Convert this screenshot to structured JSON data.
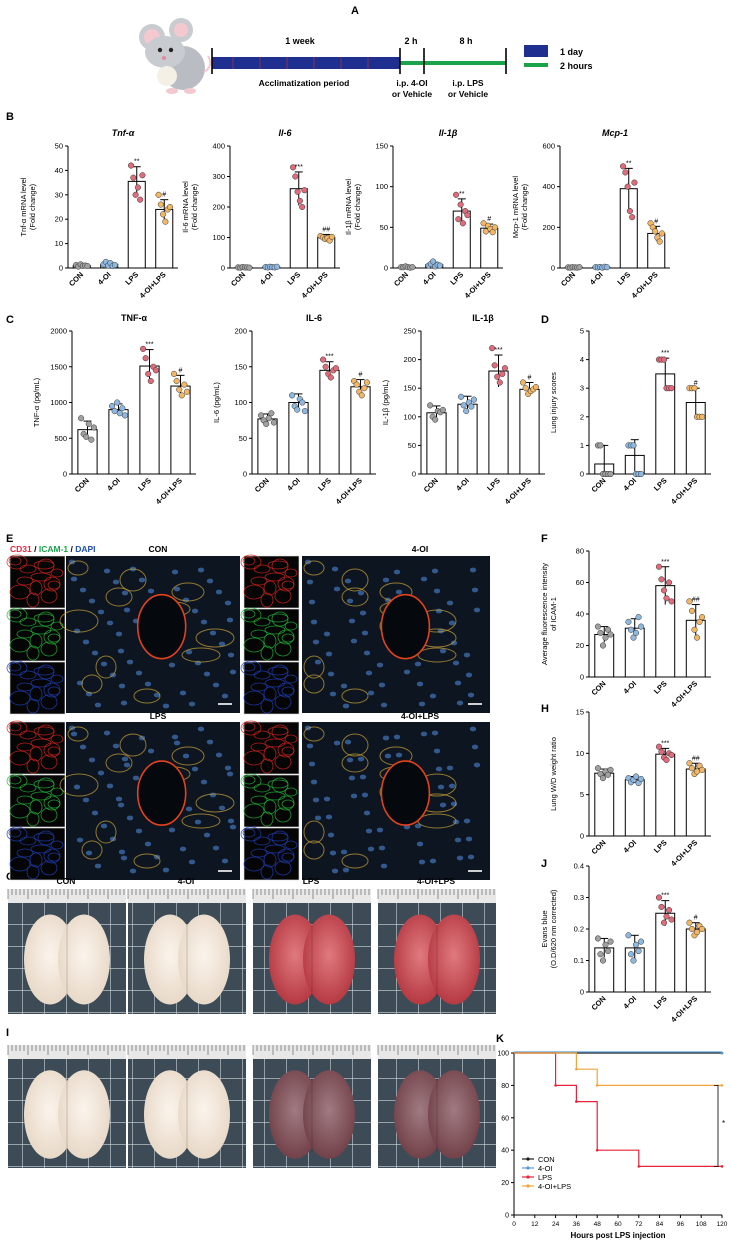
{
  "panel_letters": [
    "A",
    "B",
    "C",
    "D",
    "E",
    "F",
    "G",
    "H",
    "I",
    "J",
    "K"
  ],
  "timeline": {
    "period_1": "1 week",
    "period_2": "2 h",
    "period_3": "8 h",
    "acclim": "Acclimatization period",
    "ip1_line1": "i.p. 4-OI",
    "ip1_line2": "or Vehicle",
    "ip2_line1": "i.p. LPS",
    "ip2_line2": "or Vehicle",
    "legend_day": "1 day",
    "legend_hours": "2 hours",
    "colors": {
      "day": "#1f2f8f",
      "hours": "#1aa34a"
    }
  },
  "group_colors": {
    "CON": "#a0a0a0",
    "4-OI": "#8fb8e0",
    "LPS": "#e06b7a",
    "4-OI+LPS": "#f2b766"
  },
  "panel_e": {
    "channel_cd31": "CD31",
    "sep1": " / ",
    "channel_icam": "ICAM-1",
    "sep2": " / ",
    "channel_dapi": "DAPI",
    "labels": [
      "CON",
      "4-OI",
      "LPS",
      "4-OI+LPS"
    ]
  },
  "panel_g": {
    "labels": [
      "CON",
      "4-OI",
      "LPS",
      "4-OI+LPS"
    ]
  },
  "chart_data": [
    {
      "id": "B1",
      "type": "bar",
      "title": "Tnf-α",
      "ylabel": [
        "Tnf-α mRNA level",
        "(Fold change)"
      ],
      "categories": [
        "CON",
        "4-OI",
        "LPS",
        "4-OI+LPS"
      ],
      "values": [
        1,
        1.5,
        35.5,
        24
      ],
      "errors": [
        0.5,
        0.8,
        6,
        4
      ],
      "ylim": [
        0,
        50
      ],
      "yticks": [
        0,
        10,
        20,
        30,
        40,
        50
      ],
      "sig": [
        "",
        "",
        "**",
        "#"
      ],
      "points": [
        [
          1.2,
          0.6,
          1.5,
          0.9,
          1.0,
          0.8
        ],
        [
          1.5,
          2.5,
          1.0,
          2.0,
          0.8,
          1.2
        ],
        [
          42,
          37,
          30,
          33,
          28,
          38
        ],
        [
          30,
          26,
          22,
          19,
          24,
          25
        ]
      ]
    },
    {
      "id": "B2",
      "type": "bar",
      "title": "Il-6",
      "ylabel": [
        "Il-6 mRNA level",
        "(Fold change)"
      ],
      "categories": [
        "CON",
        "4-OI",
        "LPS",
        "4-OI+LPS"
      ],
      "values": [
        2,
        3,
        260,
        100
      ],
      "errors": [
        1,
        1.5,
        55,
        10
      ],
      "ylim": [
        0,
        400
      ],
      "yticks": [
        0,
        100,
        200,
        300,
        400
      ],
      "sig": [
        "",
        "",
        "***",
        "##"
      ],
      "points": [
        [
          2,
          1,
          3,
          2,
          2,
          1
        ],
        [
          3,
          2,
          4,
          3,
          2,
          4
        ],
        [
          330,
          300,
          250,
          220,
          200,
          255
        ],
        [
          105,
          100,
          95,
          98,
          90,
          102
        ]
      ]
    },
    {
      "id": "B3",
      "type": "bar",
      "title": "Il-1β",
      "ylabel": [
        "Il-1β mRNA level",
        "(Fold change)"
      ],
      "categories": [
        "CON",
        "4-OI",
        "LPS",
        "4-OI+LPS"
      ],
      "values": [
        1,
        4,
        70,
        49
      ],
      "errors": [
        1,
        3,
        15,
        5
      ],
      "ylim": [
        0,
        150
      ],
      "yticks": [
        0,
        50,
        100,
        150
      ],
      "sig": [
        "",
        "",
        "**",
        "#"
      ],
      "points": [
        [
          1,
          1,
          2,
          1,
          0.5,
          1
        ],
        [
          3,
          5,
          8,
          2,
          4,
          3
        ],
        [
          90,
          60,
          78,
          55,
          70,
          65
        ],
        [
          55,
          45,
          52,
          48,
          44,
          50
        ]
      ]
    },
    {
      "id": "B4",
      "type": "bar",
      "title": "Mcp-1",
      "ylabel": [
        "Mcp-1 mRNA level",
        "(Fold change)"
      ],
      "categories": [
        "CON",
        "4-OI",
        "LPS",
        "4-OI+LPS"
      ],
      "values": [
        3,
        4,
        390,
        170
      ],
      "errors": [
        1,
        2,
        100,
        35
      ],
      "ylim": [
        0,
        600
      ],
      "yticks": [
        0,
        200,
        400,
        600
      ],
      "sig": [
        "",
        "",
        "**",
        "#"
      ],
      "points": [
        [
          3,
          2,
          4,
          3,
          2,
          4
        ],
        [
          4,
          3,
          5,
          2,
          6,
          4
        ],
        [
          500,
          470,
          400,
          280,
          250,
          420
        ],
        [
          220,
          200,
          180,
          150,
          130,
          170
        ]
      ]
    },
    {
      "id": "C1",
      "type": "bar",
      "title": "TNF-α",
      "ylabel": [
        "TNF-α (pg/mL)"
      ],
      "categories": [
        "CON",
        "4-OI",
        "LPS",
        "4-OI+LPS"
      ],
      "values": [
        620,
        900,
        1510,
        1230
      ],
      "errors": [
        120,
        80,
        230,
        150
      ],
      "ylim": [
        0,
        2000
      ],
      "yticks": [
        0,
        500,
        1000,
        1500,
        2000
      ],
      "sig": [
        "",
        "",
        "***",
        "#"
      ],
      "points": [
        [
          780,
          560,
          520,
          700,
          480,
          650
        ],
        [
          950,
          880,
          1000,
          850,
          920,
          820
        ],
        [
          1750,
          1620,
          1400,
          1300,
          1500,
          1450
        ],
        [
          1400,
          1300,
          1180,
          1100,
          1250,
          1150
        ]
      ]
    },
    {
      "id": "C2",
      "type": "bar",
      "title": "IL-6",
      "ylabel": [
        "IL-6 (pg/mL)"
      ],
      "categories": [
        "CON",
        "4-OI",
        "LPS",
        "4-OI+LPS"
      ],
      "values": [
        77,
        100,
        145,
        122
      ],
      "errors": [
        7,
        12,
        12,
        10
      ],
      "ylim": [
        0,
        200
      ],
      "yticks": [
        0,
        50,
        100,
        150,
        200
      ],
      "sig": [
        "",
        "",
        "***",
        "#"
      ],
      "points": [
        [
          82,
          75,
          70,
          78,
          85,
          72
        ],
        [
          110,
          95,
          90,
          105,
          100,
          88
        ],
        [
          160,
          150,
          140,
          135,
          145,
          148
        ],
        [
          130,
          125,
          115,
          110,
          120,
          128
        ]
      ]
    },
    {
      "id": "C3",
      "type": "bar",
      "title": "IL-1β",
      "ylabel": [
        "IL-1β (pg/mL)"
      ],
      "categories": [
        "CON",
        "4-OI",
        "LPS",
        "4-OI+LPS"
      ],
      "values": [
        107,
        122,
        180,
        148
      ],
      "errors": [
        12,
        14,
        28,
        12
      ],
      "ylim": [
        0,
        250
      ],
      "yticks": [
        0,
        50,
        100,
        150,
        200,
        250
      ],
      "sig": [
        "",
        "",
        "***",
        "#"
      ],
      "points": [
        [
          120,
          100,
          95,
          110,
          108,
          112
        ],
        [
          135,
          120,
          110,
          125,
          118,
          130
        ],
        [
          220,
          190,
          170,
          160,
          175,
          185
        ],
        [
          160,
          150,
          140,
          145,
          148,
          152
        ]
      ]
    },
    {
      "id": "D",
      "type": "bar",
      "title": "",
      "ylabel": [
        "Lung injury scores"
      ],
      "categories": [
        "CON",
        "4-OI",
        "LPS",
        "4-OI+LPS"
      ],
      "values": [
        0.35,
        0.65,
        3.5,
        2.5
      ],
      "errors": [
        0.65,
        0.55,
        0.55,
        0.5
      ],
      "ylim": [
        0,
        5
      ],
      "yticks": [
        0,
        1,
        2,
        3,
        4,
        5
      ],
      "sig": [
        "",
        "",
        "***",
        "#"
      ],
      "points": [
        [
          1,
          1,
          0,
          0,
          0,
          0
        ],
        [
          1,
          1,
          1,
          0,
          0,
          0
        ],
        [
          4,
          4,
          4,
          3,
          3,
          3
        ],
        [
          3,
          3,
          3,
          2,
          2,
          2
        ]
      ]
    },
    {
      "id": "F",
      "type": "bar",
      "title": "",
      "ylabel": [
        "Average fluorescence intensity",
        "of ICAM-1"
      ],
      "categories": [
        "CON",
        "4-OI",
        "LPS",
        "4-OI+LPS"
      ],
      "values": [
        27,
        31,
        58,
        36
      ],
      "errors": [
        5,
        6,
        12,
        10
      ],
      "ylim": [
        0,
        80
      ],
      "yticks": [
        0,
        20,
        40,
        60,
        80
      ],
      "sig": [
        "",
        "",
        "***",
        "##"
      ],
      "points": [
        [
          32,
          28,
          20,
          25,
          30,
          27
        ],
        [
          35,
          30,
          25,
          28,
          38,
          32
        ],
        [
          70,
          62,
          55,
          50,
          60,
          48
        ],
        [
          48,
          42,
          30,
          25,
          35,
          38
        ]
      ]
    },
    {
      "id": "H",
      "type": "bar",
      "title": "",
      "ylabel": [
        "Lung W/D weight ratio"
      ],
      "categories": [
        "CON",
        "4-OI",
        "LPS",
        "4-OI+LPS"
      ],
      "values": [
        7.6,
        6.8,
        9.9,
        8.1
      ],
      "errors": [
        0.5,
        0.4,
        0.7,
        0.7
      ],
      "ylim": [
        0,
        15
      ],
      "yticks": [
        0,
        5,
        10,
        15
      ],
      "sig": [
        "",
        "",
        "***",
        "##"
      ],
      "points": [
        [
          8.2,
          7.5,
          7.0,
          7.8,
          7.4,
          8.0
        ],
        [
          7.0,
          6.5,
          6.8,
          7.2,
          6.4,
          6.9
        ],
        [
          10.8,
          10.2,
          9.5,
          9.2,
          10.0,
          9.8
        ],
        [
          8.8,
          8.2,
          7.5,
          7.8,
          8.5,
          8.0
        ]
      ]
    },
    {
      "id": "J",
      "type": "bar",
      "title": "",
      "ylabel": [
        "Evans blue",
        "(O.D/620 nm corrected)"
      ],
      "categories": [
        "CON",
        "4-OI",
        "LPS",
        "4-OI+LPS"
      ],
      "values": [
        0.14,
        0.14,
        0.25,
        0.2
      ],
      "errors": [
        0.03,
        0.04,
        0.04,
        0.02
      ],
      "ylim": [
        0,
        0.4
      ],
      "yticks": [
        0,
        0.1,
        0.2,
        0.3,
        0.4
      ],
      "sig": [
        "",
        "",
        "***",
        "#"
      ],
      "points": [
        [
          0.17,
          0.12,
          0.1,
          0.15,
          0.13,
          0.16
        ],
        [
          0.18,
          0.12,
          0.1,
          0.15,
          0.13,
          0.16
        ],
        [
          0.3,
          0.27,
          0.22,
          0.24,
          0.26,
          0.23
        ],
        [
          0.22,
          0.2,
          0.18,
          0.19,
          0.21,
          0.2
        ]
      ]
    },
    {
      "id": "K",
      "type": "line",
      "title": "",
      "xlabel": "Hours post LPS injection",
      "ylabel": [
        "Percent Survival"
      ],
      "xlim": [
        0,
        120
      ],
      "xticks": [
        0,
        12,
        24,
        36,
        48,
        60,
        72,
        84,
        96,
        108,
        120
      ],
      "ylim": [
        0,
        100
      ],
      "yticks": [
        0,
        20,
        40,
        60,
        80,
        100
      ],
      "sig": "*",
      "series": [
        {
          "name": "CON",
          "color": "#1a1a1a",
          "steps": [
            [
              0,
              100
            ],
            [
              120,
              100
            ]
          ]
        },
        {
          "name": "4-OI",
          "color": "#5b9bd5",
          "steps": [
            [
              0,
              100
            ],
            [
              120,
              100
            ]
          ]
        },
        {
          "name": "LPS",
          "color": "#e8223a",
          "steps": [
            [
              0,
              100
            ],
            [
              24,
              80
            ],
            [
              36,
              70
            ],
            [
              48,
              40
            ],
            [
              72,
              30
            ],
            [
              120,
              30
            ]
          ]
        },
        {
          "name": "4-OI+LPS",
          "color": "#f2a33a",
          "steps": [
            [
              0,
              100
            ],
            [
              36,
              90
            ],
            [
              48,
              80
            ],
            [
              120,
              80
            ]
          ]
        }
      ]
    }
  ]
}
